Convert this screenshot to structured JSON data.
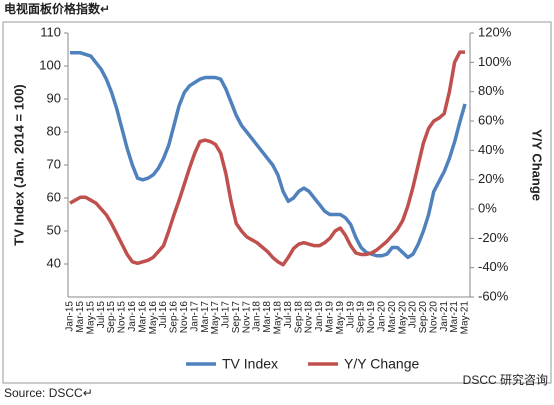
{
  "header": {
    "title": "电视面板价格指数↵"
  },
  "chart_data": {
    "type": "line",
    "y_label": "TV Index (Jan. 2014 = 100)",
    "y2_label": "Y/Y Change",
    "categories": [
      "Jan-15",
      null,
      "Mar-15",
      null,
      "May-15",
      null,
      "Jul-15",
      null,
      "Sep-15",
      null,
      "Nov-15",
      null,
      "Jan-16",
      null,
      "Mar-16",
      null,
      "May-16",
      null,
      "Jul-16",
      null,
      "Sep-16",
      null,
      "Nov-16",
      null,
      "Jan-17",
      null,
      "Mar-17",
      null,
      "May-17",
      null,
      "Jul-17",
      null,
      "Sep-17",
      null,
      "Nov-17",
      null,
      "Jan-18",
      null,
      "Mar-18",
      null,
      "May-18",
      null,
      "Jul-18",
      null,
      "Sep-18",
      null,
      "Nov-18",
      null,
      "Jan-19",
      null,
      "Mar-19",
      null,
      "May-19",
      null,
      "Jul-19",
      null,
      "Sep-19",
      null,
      "Nov-19",
      null,
      "Jan-20",
      null,
      "Mar-20",
      null,
      "May-20",
      null,
      "Jul-20",
      null,
      "Sep-20",
      null,
      "Nov-20",
      null,
      "Jan-21",
      null,
      "Mar-21",
      null,
      "May-21"
    ],
    "series": [
      {
        "name": "TV Index",
        "color": "#4f81bd",
        "values": [
          104,
          104,
          104,
          103.5,
          103,
          101,
          99,
          96,
          92,
          87,
          81,
          75,
          70,
          66,
          65.5,
          66,
          67,
          69,
          72,
          76,
          82,
          88,
          92,
          94,
          95,
          96,
          96.5,
          96.5,
          96.5,
          96,
          93,
          89,
          85,
          82,
          80,
          78,
          76,
          74,
          72,
          70,
          67,
          62,
          59,
          60,
          62,
          63,
          62,
          60,
          58,
          56,
          55,
          55,
          55,
          54,
          52,
          48,
          45,
          43.5,
          43,
          42.5,
          42.5,
          43,
          45,
          45,
          43.5,
          42,
          43,
          46,
          50,
          55,
          62,
          65,
          68,
          72,
          77,
          83,
          88.5
        ]
      },
      {
        "name": "Y/Y Change",
        "color": "#c0504d",
        "axis": "y2",
        "values": [
          4,
          6,
          8,
          8,
          6,
          4,
          0,
          -4,
          -10,
          -17,
          -24,
          -31,
          -36,
          -37,
          -36,
          -35,
          -33,
          -29,
          -25,
          -15,
          -4,
          6,
          17,
          28,
          38,
          46,
          47,
          46,
          44,
          38,
          24,
          5,
          -10,
          -15,
          -19,
          -21,
          -23,
          -26,
          -29,
          -33,
          -36,
          -38,
          -33,
          -27,
          -24,
          -23,
          -24,
          -25,
          -25,
          -23,
          -20,
          -15,
          -13,
          -18,
          -25,
          -30,
          -31,
          -31,
          -30,
          -28,
          -25,
          -22,
          -18,
          -14,
          -8,
          2,
          15,
          30,
          45,
          55,
          60,
          62,
          65,
          80,
          100,
          107,
          107
        ]
      }
    ],
    "ylim": [
      30,
      110
    ],
    "yticks": [
      40,
      50,
      60,
      70,
      80,
      90,
      100,
      110
    ],
    "y2lim": [
      -60,
      120
    ],
    "y2ticks": [
      {
        "value": -60,
        "label": "-60%"
      },
      {
        "value": -40,
        "label": "-40%"
      },
      {
        "value": -20,
        "label": "-20%"
      },
      {
        "value": 0,
        "label": "0%"
      },
      {
        "value": 20,
        "label": "20%"
      },
      {
        "value": 40,
        "label": "40%"
      },
      {
        "value": 60,
        "label": "60%"
      },
      {
        "value": 80,
        "label": "80%"
      },
      {
        "value": 100,
        "label": "100%"
      },
      {
        "value": 120,
        "label": "120%"
      }
    ],
    "legend": "bottom"
  },
  "footer": {
    "source": "Source: DSCC↵",
    "watermark": "DSCC 研究咨询"
  }
}
